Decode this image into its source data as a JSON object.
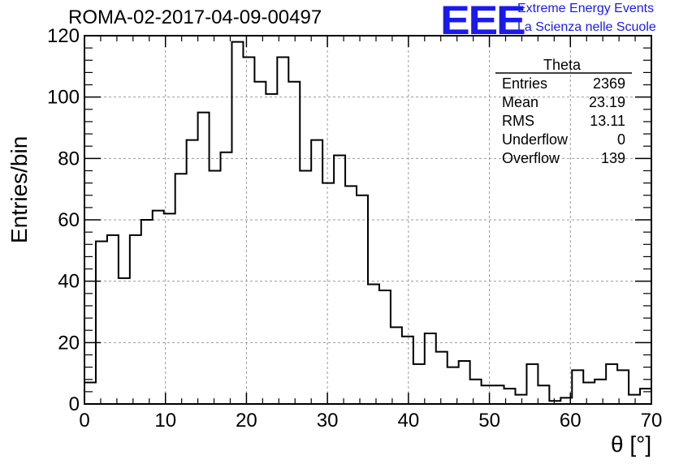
{
  "header": {
    "run_title": "ROMA-02-2017-04-09-00497",
    "logo_text": "EEE",
    "logo_line1": "Extreme Energy Events",
    "logo_line2": "La Scienza nelle Scuole"
  },
  "stats": {
    "title": "Theta",
    "rows": [
      {
        "key": "Entries",
        "value": "2369"
      },
      {
        "key": "Mean",
        "value": "23.19"
      },
      {
        "key": "RMS",
        "value": "13.11"
      },
      {
        "key": "Underflow",
        "value": "0"
      },
      {
        "key": "Overflow",
        "value": "139"
      }
    ]
  },
  "colors": {
    "logo": "#1a1aee",
    "line": "#000000",
    "grid": "#999999"
  },
  "chart_data": {
    "type": "histogram",
    "title": "ROMA-02-2017-04-09-00497",
    "xlabel": "θ [°]",
    "ylabel": "Entries/bin",
    "xlim": [
      0,
      70
    ],
    "ylim": [
      0,
      120
    ],
    "bin_width": 1.4,
    "xticks": [
      "0",
      "10",
      "20",
      "30",
      "40",
      "50",
      "60",
      "70"
    ],
    "yticks": [
      "0",
      "20",
      "40",
      "60",
      "80",
      "100",
      "120"
    ],
    "grid": true,
    "values": [
      7,
      53,
      55,
      41,
      55,
      60,
      63,
      62,
      75,
      86,
      95,
      76,
      82,
      118,
      113,
      105,
      101,
      113,
      105,
      76,
      86,
      72,
      81,
      71,
      68,
      39,
      37,
      25,
      22,
      13,
      23,
      17,
      12,
      14,
      8,
      6,
      6,
      5,
      3,
      13,
      6,
      1,
      2,
      11,
      7,
      8,
      13,
      11,
      3,
      5
    ]
  }
}
